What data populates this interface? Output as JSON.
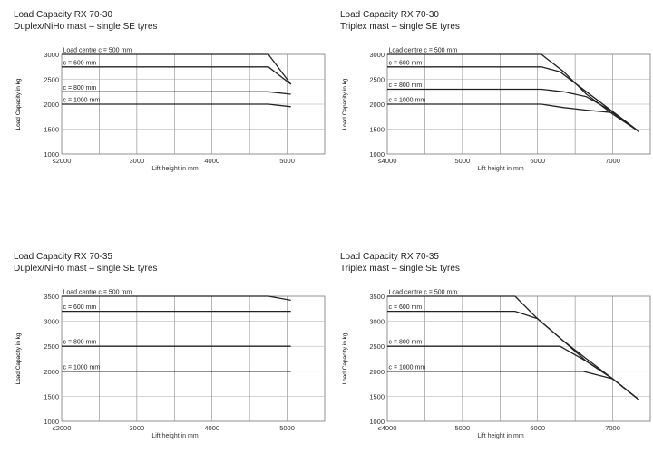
{
  "charts": [
    {
      "title": "Load Capacity RX 70-30",
      "subtitle": "Duplex/NiHo mast – single SE tyres",
      "xlabel": "Lift height in mm",
      "ylabel": "Load Capacity in kg",
      "chart_data": {
        "type": "line",
        "xlim": [
          2000,
          5500
        ],
        "ylim": [
          1000,
          3000
        ],
        "grid": true,
        "x_ticks": [
          2000,
          2500,
          3000,
          3500,
          4000,
          4500,
          5000,
          5500
        ],
        "x_tick_labels": [
          "≤2000",
          "",
          "3000",
          "",
          "4000",
          "",
          "5000",
          ""
        ],
        "y_ticks": [
          1000,
          1500,
          2000,
          2500,
          3000
        ],
        "y_tick_labels": [
          "1000",
          "1500",
          "2000",
          "2500",
          "3000"
        ],
        "series": [
          {
            "name": "Load centre c = 500 mm",
            "points": [
              [
                2000,
                3000
              ],
              [
                4750,
                3000
              ],
              [
                5050,
                2400
              ]
            ]
          },
          {
            "name": "c = 600 mm",
            "points": [
              [
                2000,
                2750
              ],
              [
                4750,
                2750
              ],
              [
                5050,
                2400
              ]
            ]
          },
          {
            "name": "c = 800 mm",
            "points": [
              [
                2000,
                2250
              ],
              [
                4750,
                2250
              ],
              [
                5050,
                2200
              ]
            ]
          },
          {
            "name": "c = 1000 mm",
            "points": [
              [
                2000,
                2000
              ],
              [
                4750,
                2000
              ],
              [
                5050,
                1950
              ]
            ]
          }
        ]
      }
    },
    {
      "title": "Load Capacity RX 70-30",
      "subtitle": "Triplex mast – single SE tyres",
      "xlabel": "Lift height in mm",
      "ylabel": "Load Capacity in kg",
      "chart_data": {
        "type": "line",
        "xlim": [
          4000,
          7500
        ],
        "ylim": [
          1000,
          3000
        ],
        "grid": true,
        "x_ticks": [
          4000,
          4500,
          5000,
          5500,
          6000,
          6500,
          7000,
          7500
        ],
        "x_tick_labels": [
          "≤4000",
          "",
          "5000",
          "",
          "6000",
          "",
          "7000",
          ""
        ],
        "y_ticks": [
          1000,
          1500,
          2000,
          2500,
          3000
        ],
        "y_tick_labels": [
          "1000",
          "1500",
          "2000",
          "2500",
          "3000"
        ],
        "series": [
          {
            "name": "Load centre c = 500 mm",
            "points": [
              [
                4000,
                3000
              ],
              [
                6050,
                3000
              ],
              [
                6350,
                2650
              ],
              [
                6650,
                2200
              ],
              [
                7000,
                1800
              ],
              [
                7350,
                1450
              ]
            ]
          },
          {
            "name": "c = 600 mm",
            "points": [
              [
                4000,
                2750
              ],
              [
                6050,
                2750
              ],
              [
                6300,
                2650
              ],
              [
                6650,
                2250
              ],
              [
                7000,
                1850
              ],
              [
                7350,
                1450
              ]
            ]
          },
          {
            "name": "c = 800 mm",
            "points": [
              [
                4000,
                2300
              ],
              [
                6050,
                2300
              ],
              [
                6350,
                2250
              ],
              [
                6650,
                2150
              ],
              [
                7000,
                1850
              ],
              [
                7350,
                1450
              ]
            ]
          },
          {
            "name": "c = 1000 mm",
            "points": [
              [
                4000,
                2000
              ],
              [
                6050,
                2000
              ],
              [
                6350,
                1930
              ],
              [
                6650,
                1880
              ],
              [
                7000,
                1830
              ],
              [
                7350,
                1450
              ]
            ]
          }
        ]
      }
    },
    {
      "title": "Load Capacity RX 70-35",
      "subtitle": "Duplex/NiHo mast – single SE tyres",
      "xlabel": "Lift height in mm",
      "ylabel": "Load Capacity in kg",
      "chart_data": {
        "type": "line",
        "xlim": [
          2000,
          5500
        ],
        "ylim": [
          1000,
          3500
        ],
        "grid": true,
        "x_ticks": [
          2000,
          2500,
          3000,
          3500,
          4000,
          4500,
          5000,
          5500
        ],
        "x_tick_labels": [
          "≤2000",
          "",
          "3000",
          "",
          "4000",
          "",
          "5000",
          ""
        ],
        "y_ticks": [
          1000,
          1500,
          2000,
          2500,
          3000,
          3500
        ],
        "y_tick_labels": [
          "1000",
          "1500",
          "2000",
          "2500",
          "3000",
          "3500"
        ],
        "series": [
          {
            "name": "Load centre c = 500 mm",
            "points": [
              [
                2000,
                3500
              ],
              [
                4750,
                3500
              ],
              [
                5050,
                3420
              ]
            ]
          },
          {
            "name": "c = 600 mm",
            "points": [
              [
                2000,
                3200
              ],
              [
                5050,
                3200
              ]
            ]
          },
          {
            "name": "c = 800 mm",
            "points": [
              [
                2000,
                2500
              ],
              [
                5050,
                2500
              ]
            ]
          },
          {
            "name": "c = 1000 mm",
            "points": [
              [
                2000,
                2000
              ],
              [
                5050,
                2000
              ]
            ]
          }
        ]
      }
    },
    {
      "title": "Load Capacity RX 70-35",
      "subtitle": "Triplex mast – single SE tyres",
      "xlabel": "Lift height in mm",
      "ylabel": "Load Capacity in kg",
      "chart_data": {
        "type": "line",
        "xlim": [
          4000,
          7500
        ],
        "ylim": [
          1000,
          3500
        ],
        "grid": true,
        "x_ticks": [
          4000,
          4500,
          5000,
          5500,
          6000,
          6500,
          7000,
          7500
        ],
        "x_tick_labels": [
          "≤4000",
          "",
          "5000",
          "",
          "6000",
          "",
          "7000",
          ""
        ],
        "y_ticks": [
          1000,
          1500,
          2000,
          2500,
          3000,
          3500
        ],
        "y_tick_labels": [
          "1000",
          "1500",
          "2000",
          "2500",
          "3000",
          "3500"
        ],
        "series": [
          {
            "name": "Load centre c = 500 mm",
            "points": [
              [
                4000,
                3500
              ],
              [
                5700,
                3500
              ],
              [
                6000,
                3050
              ],
              [
                6350,
                2600
              ],
              [
                6650,
                2250
              ],
              [
                7000,
                1850
              ],
              [
                7350,
                1430
              ]
            ]
          },
          {
            "name": "c = 600 mm",
            "points": [
              [
                4000,
                3200
              ],
              [
                5700,
                3200
              ],
              [
                6000,
                3050
              ],
              [
                6350,
                2600
              ],
              [
                6650,
                2200
              ],
              [
                7000,
                1850
              ],
              [
                7350,
                1430
              ]
            ]
          },
          {
            "name": "c = 800 mm",
            "points": [
              [
                4000,
                2500
              ],
              [
                6300,
                2500
              ],
              [
                6650,
                2200
              ],
              [
                7000,
                1850
              ],
              [
                7350,
                1430
              ]
            ]
          },
          {
            "name": "c = 1000 mm",
            "points": [
              [
                4000,
                2000
              ],
              [
                6600,
                2000
              ],
              [
                7000,
                1850
              ],
              [
                7350,
                1430
              ]
            ]
          }
        ]
      }
    }
  ]
}
